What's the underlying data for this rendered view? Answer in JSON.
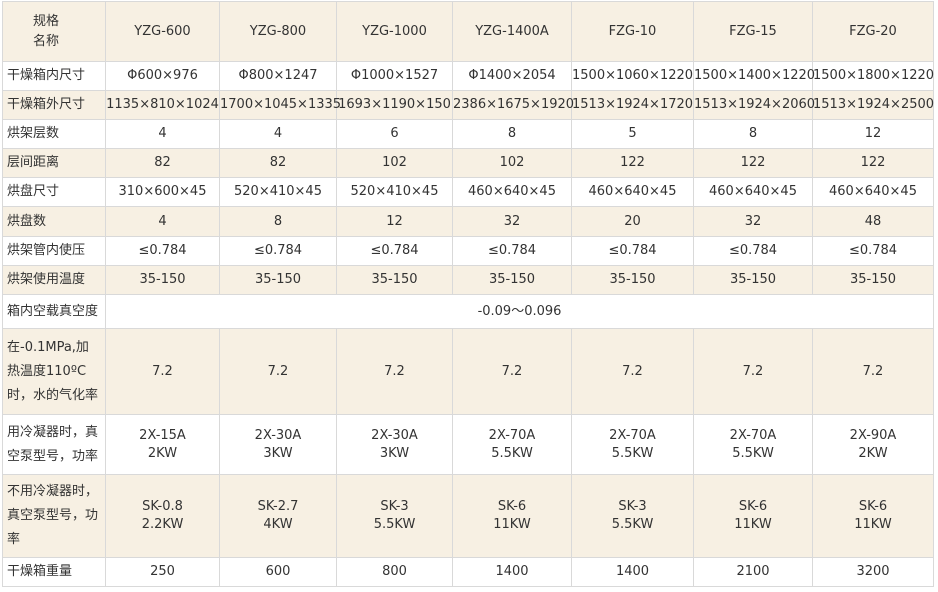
{
  "header": {
    "corner_line1": "规格",
    "corner_line2": "名称",
    "models": [
      "YZG-600",
      "YZG-800",
      "YZG-1000",
      "YZG-1400A",
      "FZG-10",
      "FZG-15",
      "FZG-20"
    ]
  },
  "rows": [
    {
      "label": "干燥箱内尺寸",
      "values": [
        "Φ600×976",
        "Φ800×1247",
        "Φ1000×1527",
        "Φ1400×2054",
        "1500×1060×1220",
        "1500×1400×1220",
        "1500×1800×1220"
      ]
    },
    {
      "label": "干燥箱外尺寸",
      "values": [
        "1135×810×1024",
        "1700×1045×1335",
        "1693×1190×150",
        "2386×1675×1920",
        "1513×1924×1720",
        "1513×1924×2060",
        "1513×1924×2500"
      ]
    },
    {
      "label": "烘架层数",
      "values": [
        "4",
        "4",
        "6",
        "8",
        "5",
        "8",
        "12"
      ]
    },
    {
      "label": "层间距离",
      "values": [
        "82",
        "82",
        "102",
        "102",
        "122",
        "122",
        "122"
      ]
    },
    {
      "label": "烘盘尺寸",
      "values": [
        "310×600×45",
        "520×410×45",
        "520×410×45",
        "460×640×45",
        "460×640×45",
        "460×640×45",
        "460×640×45"
      ]
    },
    {
      "label": "烘盘数",
      "values": [
        "4",
        "8",
        "12",
        "32",
        "20",
        "32",
        "48"
      ]
    },
    {
      "label": "烘架管内使压",
      "values": [
        "≤0.784",
        "≤0.784",
        "≤0.784",
        "≤0.784",
        "≤0.784",
        "≤0.784",
        "≤0.784"
      ]
    },
    {
      "label": "烘架使用温度",
      "values": [
        "35-150",
        "35-150",
        "35-150",
        "35-150",
        "35-150",
        "35-150",
        "35-150"
      ]
    }
  ],
  "vacuum_row": {
    "label": "箱内空载真空度",
    "value": "-0.09～0.096"
  },
  "vaporization_row": {
    "label_lines": [
      "在-0.1MPa,加",
      "热温度110ºC",
      "时，水的气化率"
    ],
    "values": [
      "7.2",
      "7.2",
      "7.2",
      "7.2",
      "7.2",
      "7.2",
      "7.2"
    ]
  },
  "with_condenser_row": {
    "label_lines": [
      "用冷凝器时，真",
      "空泵型号，功率"
    ],
    "values": [
      [
        "2X-15A",
        "2KW"
      ],
      [
        "2X-30A",
        "3KW"
      ],
      [
        "2X-30A",
        "3KW"
      ],
      [
        "2X-70A",
        "5.5KW"
      ],
      [
        "2X-70A",
        "5.5KW"
      ],
      [
        "2X-70A",
        "5.5KW"
      ],
      [
        "2X-90A",
        "2KW"
      ]
    ]
  },
  "without_condenser_row": {
    "label_lines": [
      "不用冷凝器时，",
      "真空泵型号，功",
      "率"
    ],
    "values": [
      [
        "SK-0.8",
        "2.2KW"
      ],
      [
        "SK-2.7",
        "4KW"
      ],
      [
        "SK-3",
        "5.5KW"
      ],
      [
        "SK-6",
        "11KW"
      ],
      [
        "SK-3",
        "5.5KW"
      ],
      [
        "SK-6",
        "11KW"
      ],
      [
        "SK-6",
        "11KW"
      ]
    ]
  },
  "weight_row": {
    "label": "干燥箱重量",
    "values": [
      "250",
      "600",
      "800",
      "1400",
      "1400",
      "2100",
      "3200"
    ]
  }
}
